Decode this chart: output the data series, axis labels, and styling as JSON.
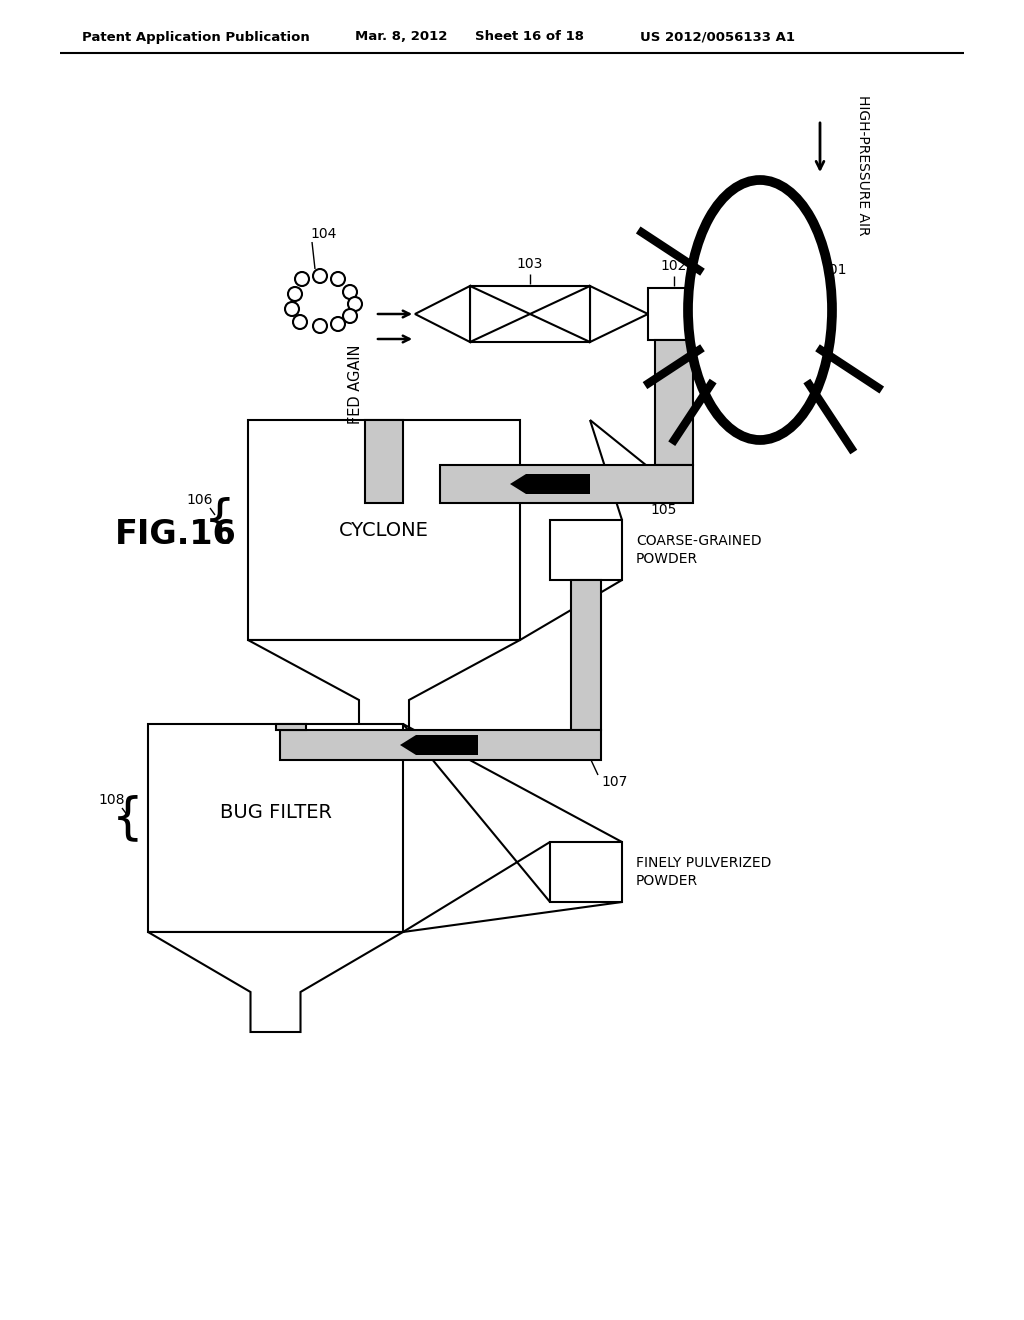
{
  "bg_color": "#ffffff",
  "header_text": "Patent Application Publication",
  "header_date": "Mar. 8, 2012",
  "header_sheet": "Sheet 16 of 18",
  "header_patent": "US 2012/0056133 A1",
  "figure_label": "FIG.16",
  "text_labels": {
    "high_pressure_air": "HIGH-PRESSURE AIR",
    "fed_again": "FED AGAIN",
    "coarse_grained": "COARSE-GRAINED\nPOWDER",
    "cyclone": "CYCLONE",
    "bug_filter": "BUG FILTER",
    "finely_pulverized": "FINELY PULVERIZED\nPOWDER"
  },
  "gray_fill": "#c8c8c8",
  "white_fill": "#ffffff",
  "black": "#000000"
}
